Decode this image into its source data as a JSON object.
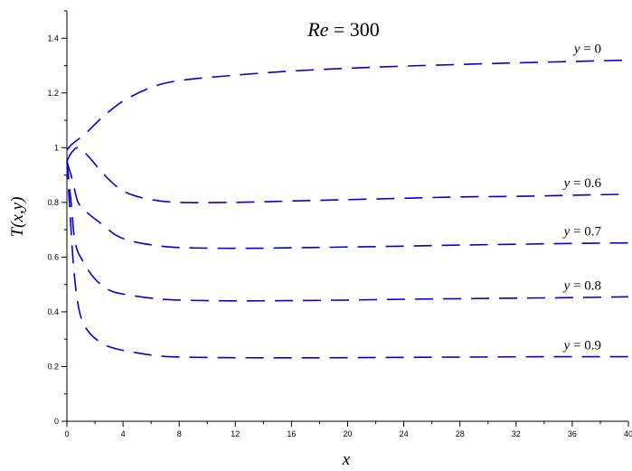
{
  "chart_data": {
    "type": "line",
    "title": "Re = 300",
    "title_parts": {
      "var": "Re",
      "rest": " = 300"
    },
    "xlabel": "x",
    "ylabel": "T(x,y)",
    "xlim": [
      0,
      40
    ],
    "ylim": [
      0,
      1.5
    ],
    "x_ticks": [
      0,
      4,
      8,
      12,
      16,
      20,
      24,
      28,
      32,
      36,
      40
    ],
    "y_ticks": [
      0,
      0.2,
      0.4,
      0.6,
      0.8,
      1,
      1.2,
      1.4
    ],
    "grid": false,
    "line_color": "#0000dd",
    "line_style": "dashed",
    "series": [
      {
        "name": "y = 0",
        "label_var": "y",
        "label_rest": " = 0",
        "x": [
          0,
          0.3,
          0.8,
          1.5,
          2.5,
          4,
          6,
          8,
          12,
          16,
          20,
          24,
          28,
          32,
          36,
          40
        ],
        "y": [
          0.99,
          1.01,
          1.03,
          1.06,
          1.11,
          1.17,
          1.22,
          1.245,
          1.265,
          1.28,
          1.29,
          1.298,
          1.304,
          1.31,
          1.315,
          1.32
        ]
      },
      {
        "name": "y = 0.6",
        "label_var": "y",
        "label_rest": " = 0.6",
        "x": [
          0,
          0.3,
          0.8,
          1.5,
          2.5,
          3.5,
          4.5,
          6,
          8,
          12,
          16,
          20,
          24,
          28,
          32,
          36,
          40
        ],
        "y": [
          0.95,
          0.98,
          1.0,
          0.97,
          0.91,
          0.86,
          0.83,
          0.81,
          0.8,
          0.8,
          0.805,
          0.81,
          0.815,
          0.82,
          0.822,
          0.826,
          0.83
        ]
      },
      {
        "name": "y = 0.7",
        "label_var": "y",
        "label_rest": " = 0.7",
        "x": [
          0,
          0.4,
          0.8,
          1.5,
          2.5,
          3.5,
          4.5,
          6,
          8,
          12,
          16,
          20,
          24,
          28,
          32,
          36,
          40
        ],
        "y": [
          0.95,
          0.88,
          0.8,
          0.76,
          0.72,
          0.68,
          0.66,
          0.645,
          0.635,
          0.632,
          0.634,
          0.637,
          0.64,
          0.644,
          0.647,
          0.65,
          0.652
        ]
      },
      {
        "name": "y = 0.8",
        "label_var": "y",
        "label_rest": " = 0.8",
        "x": [
          0,
          0.3,
          0.6,
          1.2,
          2.0,
          3.0,
          4.0,
          6,
          8,
          12,
          16,
          20,
          24,
          28,
          32,
          36,
          40
        ],
        "y": [
          0.95,
          0.8,
          0.65,
          0.58,
          0.52,
          0.48,
          0.465,
          0.45,
          0.443,
          0.44,
          0.441,
          0.443,
          0.446,
          0.448,
          0.45,
          0.452,
          0.455
        ]
      },
      {
        "name": "y = 0.9",
        "label_var": "y",
        "label_rest": " = 0.9",
        "x": [
          0,
          0.2,
          0.5,
          0.9,
          1.5,
          2.5,
          3.5,
          5,
          7,
          10,
          14,
          18,
          22,
          26,
          30,
          34,
          38,
          40
        ],
        "y": [
          0.95,
          0.78,
          0.55,
          0.4,
          0.33,
          0.285,
          0.265,
          0.25,
          0.237,
          0.233,
          0.232,
          0.232,
          0.233,
          0.234,
          0.235,
          0.236,
          0.236,
          0.236
        ]
      }
    ]
  }
}
